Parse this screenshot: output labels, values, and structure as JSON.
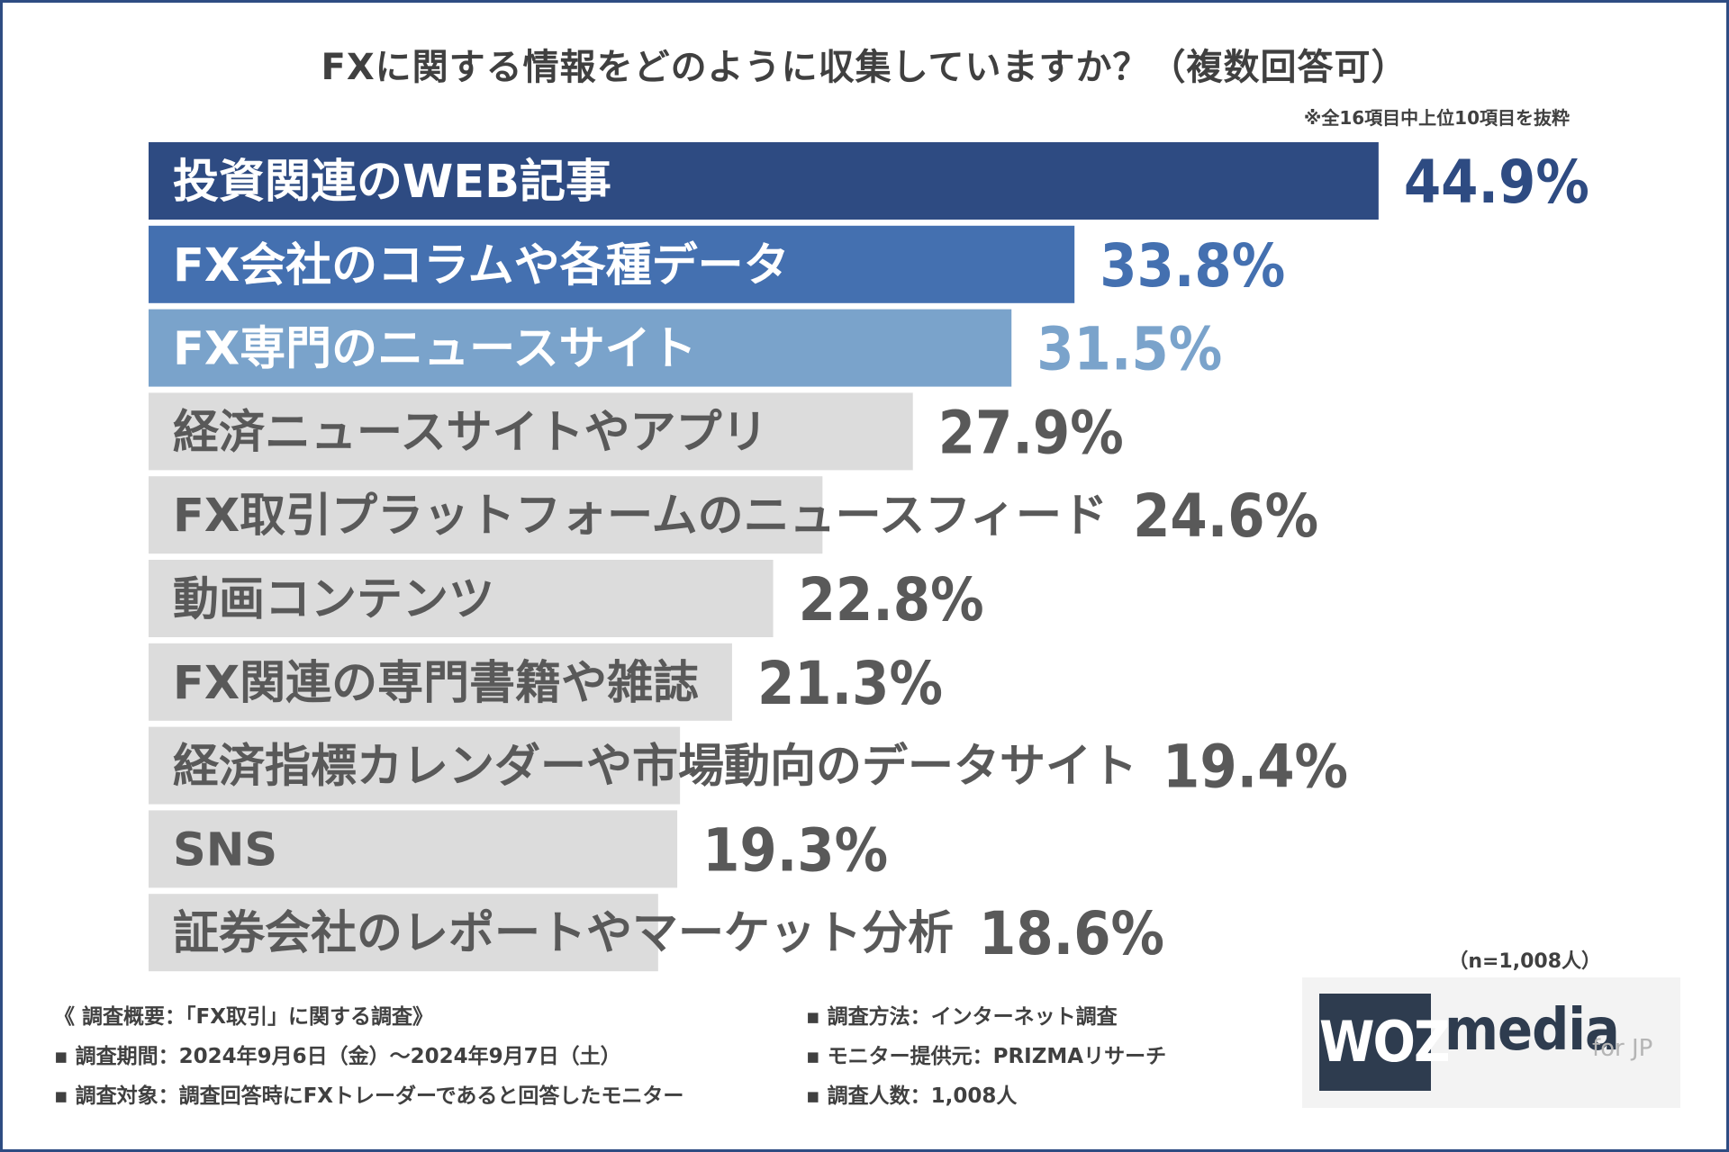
{
  "chart_data": {
    "type": "bar",
    "orientation": "horizontal",
    "title": "FXに関する情報をどのように収集していますか？（複数回答可）",
    "note": "※全16項目中上位10項目を抜粋",
    "unit": "%",
    "categories": [
      "投資関連のWEB記事",
      "FX会社のコラムや各種データ",
      "FX専門のニュースサイト",
      "経済ニュースサイトやアプリ",
      "FX取引プラットフォームのニュースフィード",
      "動画コンテンツ",
      "FX関連の専門書籍や雑誌",
      "経済指標カレンダーや市場動向のデータサイト",
      "SNS",
      "証券会社のレポートやマーケット分析"
    ],
    "values": [
      44.9,
      33.8,
      31.5,
      27.9,
      24.6,
      22.8,
      21.3,
      19.4,
      19.3,
      18.6
    ],
    "value_labels": [
      "44.9%",
      "33.8%",
      "31.5%",
      "27.9%",
      "24.6%",
      "22.8%",
      "21.3%",
      "19.4%",
      "19.3%",
      "18.6%"
    ],
    "bar_colors": [
      "#2e4b82",
      "#4470b0",
      "#7aa3cb",
      "#dcdcdc",
      "#dcdcdc",
      "#dcdcdc",
      "#dcdcdc",
      "#dcdcdc",
      "#dcdcdc",
      "#dcdcdc"
    ],
    "bar_text_colors": [
      "#ffffff",
      "#ffffff",
      "#ffffff",
      "#595959",
      "#595959",
      "#595959",
      "#595959",
      "#595959",
      "#595959",
      "#595959"
    ],
    "value_colors": [
      "#2e4b82",
      "#4470b0",
      "#7aa3cb",
      "#595959",
      "#595959",
      "#595959",
      "#595959",
      "#595959",
      "#595959",
      "#595959"
    ],
    "sample_size": "（n=1,008人）",
    "xlim": [
      0,
      50
    ]
  },
  "footer": {
    "left": [
      "《 調査概要：「FX取引」に関する調査》",
      "▪ 調査期間：2024年9月6日（金）〜2024年9月7日（土）",
      "▪ 調査対象：調査回答時にFXトレーダーであると回答したモニター"
    ],
    "right": [
      "▪ 調査方法：インターネット調査",
      "▪ モニター提供元：PRIZMAリサーチ",
      "▪ 調査人数：1,008人"
    ]
  },
  "logo": {
    "box_text": "WOZ",
    "main_text": "media",
    "suffix_text": "for JP"
  },
  "colors": {
    "frame": "#2e4c82",
    "text": "#404040"
  }
}
